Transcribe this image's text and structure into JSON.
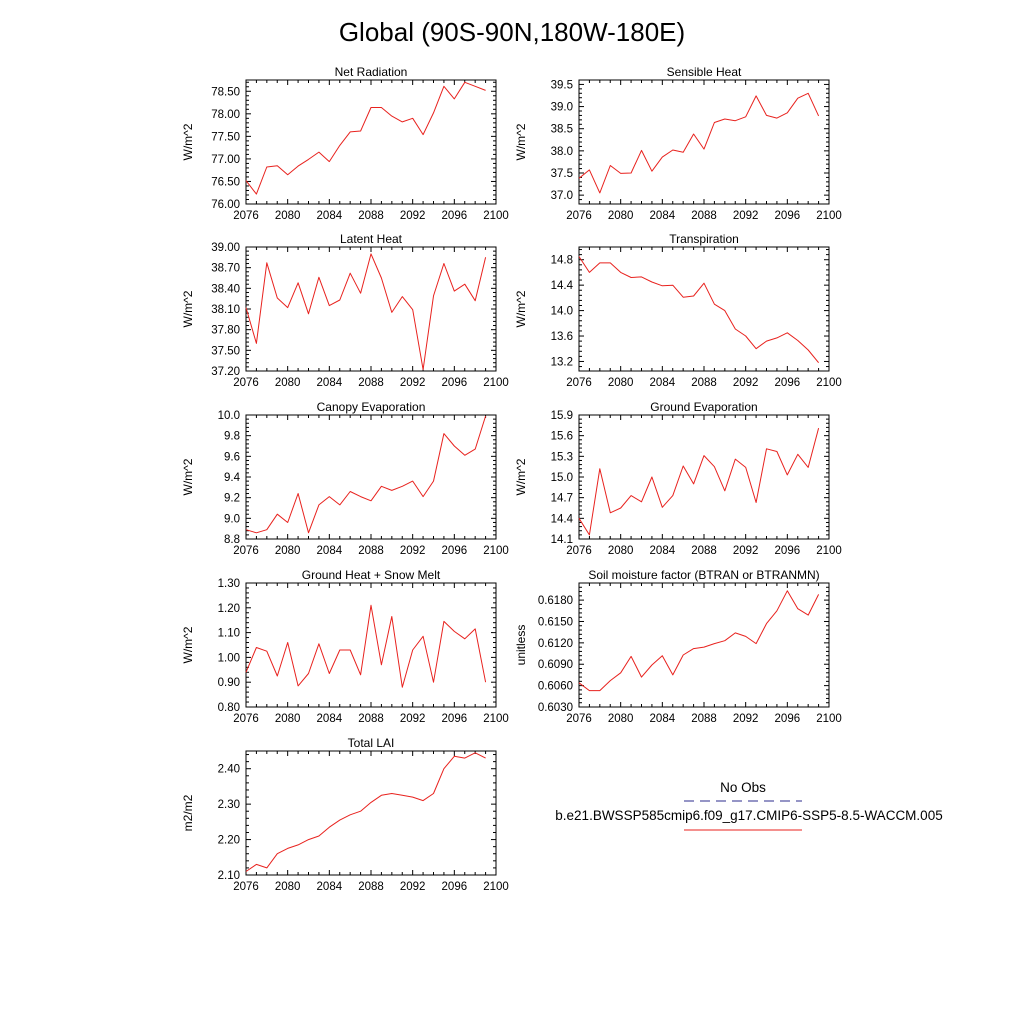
{
  "figure": {
    "title": "Global (90S-90N,180W-180E)"
  },
  "legend": {
    "items": [
      {
        "label": "No Obs",
        "color": "#2b2b8c",
        "style": "dashed"
      },
      {
        "label": "b.e21.BWSSP585cmip6.f09_g17.CMIP6-SSP5-8.5-WACCM.005",
        "color": "#e8221e",
        "style": "solid"
      }
    ]
  },
  "chart_data": [
    {
      "type": "line",
      "title": "Net Radiation",
      "ylabel": "W/m^2",
      "xlim": [
        2076,
        2100
      ],
      "ylim": [
        76.0,
        78.75
      ],
      "xticks": [
        "2076",
        "2080",
        "2084",
        "2088",
        "2092",
        "2096",
        "2100"
      ],
      "yticks": [
        "76.00",
        "76.50",
        "77.00",
        "77.50",
        "78.00",
        "78.50"
      ],
      "series": [
        {
          "color": "#e8221e",
          "x": [
            2076,
            2077,
            2078,
            2079,
            2080,
            2081,
            2082,
            2083,
            2084,
            2085,
            2086,
            2087,
            2088,
            2089,
            2090,
            2091,
            2092,
            2093,
            2094,
            2095,
            2096,
            2097,
            2098,
            2099
          ],
          "values": [
            76.52,
            76.22,
            76.82,
            76.85,
            76.65,
            76.84,
            76.99,
            77.15,
            76.94,
            77.3,
            77.6,
            77.62,
            78.14,
            78.14,
            77.95,
            77.82,
            77.9,
            77.54,
            78.02,
            78.61,
            78.33,
            78.7,
            78.61,
            78.52
          ]
        }
      ]
    },
    {
      "type": "line",
      "title": "Sensible Heat",
      "ylabel": "W/m^2",
      "xlim": [
        2076,
        2100
      ],
      "ylim": [
        36.8,
        39.6
      ],
      "xticks": [
        "2076",
        "2080",
        "2084",
        "2088",
        "2092",
        "2096",
        "2100"
      ],
      "yticks": [
        "37.0",
        "37.5",
        "38.0",
        "38.5",
        "39.0",
        "39.5"
      ],
      "series": [
        {
          "color": "#e8221e",
          "x": [
            2076,
            2077,
            2078,
            2079,
            2080,
            2081,
            2082,
            2083,
            2084,
            2085,
            2086,
            2087,
            2088,
            2089,
            2090,
            2091,
            2092,
            2093,
            2094,
            2095,
            2096,
            2097,
            2098,
            2099
          ],
          "values": [
            37.38,
            37.57,
            37.05,
            37.67,
            37.49,
            37.5,
            38.01,
            37.54,
            37.86,
            38.02,
            37.97,
            38.38,
            38.04,
            38.64,
            38.72,
            38.68,
            38.77,
            39.24,
            38.8,
            38.74,
            38.86,
            39.19,
            39.3,
            38.79
          ]
        }
      ]
    },
    {
      "type": "line",
      "title": "Latent Heat",
      "ylabel": "W/m^2",
      "xlim": [
        2076,
        2100
      ],
      "ylim": [
        37.2,
        39.0
      ],
      "xticks": [
        "2076",
        "2080",
        "2084",
        "2088",
        "2092",
        "2096",
        "2100"
      ],
      "yticks": [
        "37.20",
        "37.50",
        "37.80",
        "38.10",
        "38.40",
        "38.70",
        "39.00"
      ],
      "series": [
        {
          "color": "#e8221e",
          "x": [
            2076,
            2077,
            2078,
            2079,
            2080,
            2081,
            2082,
            2083,
            2084,
            2085,
            2086,
            2087,
            2088,
            2089,
            2090,
            2091,
            2092,
            2093,
            2094,
            2095,
            2096,
            2097,
            2098,
            2099
          ],
          "values": [
            38.12,
            37.6,
            38.77,
            38.26,
            38.12,
            38.48,
            38.03,
            38.56,
            38.15,
            38.23,
            38.62,
            38.33,
            38.9,
            38.55,
            38.05,
            38.28,
            38.09,
            37.22,
            38.29,
            38.76,
            38.36,
            38.46,
            38.22,
            38.85
          ]
        }
      ]
    },
    {
      "type": "line",
      "title": "Transpiration",
      "ylabel": "W/m^2",
      "xlim": [
        2076,
        2100
      ],
      "ylim": [
        13.05,
        15.0
      ],
      "xticks": [
        "2076",
        "2080",
        "2084",
        "2088",
        "2092",
        "2096",
        "2100"
      ],
      "yticks": [
        "13.2",
        "13.6",
        "14.0",
        "14.4",
        "14.8"
      ],
      "series": [
        {
          "color": "#e8221e",
          "x": [
            2076,
            2077,
            2078,
            2079,
            2080,
            2081,
            2082,
            2083,
            2084,
            2085,
            2086,
            2087,
            2088,
            2089,
            2090,
            2091,
            2092,
            2093,
            2094,
            2095,
            2096,
            2097,
            2098,
            2099
          ],
          "values": [
            14.85,
            14.6,
            14.75,
            14.75,
            14.6,
            14.52,
            14.53,
            14.45,
            14.39,
            14.4,
            14.21,
            14.23,
            14.43,
            14.1,
            14.0,
            13.71,
            13.6,
            13.4,
            13.52,
            13.57,
            13.65,
            13.53,
            13.38,
            13.18
          ]
        }
      ]
    },
    {
      "type": "line",
      "title": "Canopy Evaporation",
      "ylabel": "W/m^2",
      "xlim": [
        2076,
        2100
      ],
      "ylim": [
        8.8,
        10.0
      ],
      "xticks": [
        "2076",
        "2080",
        "2084",
        "2088",
        "2092",
        "2096",
        "2100"
      ],
      "yticks": [
        "8.8",
        "9.0",
        "9.2",
        "9.4",
        "9.6",
        "9.8",
        "10.0"
      ],
      "series": [
        {
          "color": "#e8221e",
          "x": [
            2076,
            2077,
            2078,
            2079,
            2080,
            2081,
            2082,
            2083,
            2084,
            2085,
            2086,
            2087,
            2088,
            2089,
            2090,
            2091,
            2092,
            2093,
            2094,
            2095,
            2096,
            2097,
            2098,
            2099
          ],
          "values": [
            8.89,
            8.86,
            8.89,
            9.04,
            8.96,
            9.24,
            8.86,
            9.13,
            9.21,
            9.13,
            9.26,
            9.21,
            9.17,
            9.31,
            9.27,
            9.31,
            9.36,
            9.21,
            9.36,
            9.82,
            9.7,
            9.61,
            9.67,
            9.99
          ]
        }
      ]
    },
    {
      "type": "line",
      "title": "Ground Evaporation",
      "ylabel": "W/m^2",
      "xlim": [
        2076,
        2100
      ],
      "ylim": [
        14.1,
        15.9
      ],
      "xticks": [
        "2076",
        "2080",
        "2084",
        "2088",
        "2092",
        "2096",
        "2100"
      ],
      "yticks": [
        "14.1",
        "14.4",
        "14.7",
        "15.0",
        "15.3",
        "15.6",
        "15.9"
      ],
      "series": [
        {
          "color": "#e8221e",
          "x": [
            2076,
            2077,
            2078,
            2079,
            2080,
            2081,
            2082,
            2083,
            2084,
            2085,
            2086,
            2087,
            2088,
            2089,
            2090,
            2091,
            2092,
            2093,
            2094,
            2095,
            2096,
            2097,
            2098,
            2099
          ],
          "values": [
            14.4,
            14.16,
            15.12,
            14.48,
            14.55,
            14.73,
            14.64,
            15.0,
            14.56,
            14.73,
            15.16,
            14.9,
            15.31,
            15.15,
            14.8,
            15.26,
            15.14,
            14.63,
            15.41,
            15.37,
            15.03,
            15.33,
            15.14,
            15.71
          ]
        }
      ]
    },
    {
      "type": "line",
      "title": "Ground Heat + Snow Melt",
      "ylabel": "W/m^2",
      "xlim": [
        2076,
        2100
      ],
      "ylim": [
        0.8,
        1.3
      ],
      "xticks": [
        "2076",
        "2080",
        "2084",
        "2088",
        "2092",
        "2096",
        "2100"
      ],
      "yticks": [
        "0.80",
        "0.90",
        "1.00",
        "1.10",
        "1.20",
        "1.30"
      ],
      "series": [
        {
          "color": "#e8221e",
          "x": [
            2076,
            2077,
            2078,
            2079,
            2080,
            2081,
            2082,
            2083,
            2084,
            2085,
            2086,
            2087,
            2088,
            2089,
            2090,
            2091,
            2092,
            2093,
            2094,
            2095,
            2096,
            2097,
            2098,
            2099
          ],
          "values": [
            0.94,
            1.04,
            1.025,
            0.925,
            1.06,
            0.885,
            0.935,
            1.055,
            0.935,
            1.03,
            1.03,
            0.93,
            1.21,
            0.97,
            1.165,
            0.88,
            1.03,
            1.085,
            0.9,
            1.145,
            1.105,
            1.075,
            1.115,
            0.9
          ]
        }
      ]
    },
    {
      "type": "line",
      "title": "Soil moisture factor (BTRAN or BTRANMN)",
      "ylabel": "unitless",
      "xlim": [
        2076,
        2100
      ],
      "ylim": [
        0.603,
        0.6204
      ],
      "xticks": [
        "2076",
        "2080",
        "2084",
        "2088",
        "2092",
        "2096",
        "2100"
      ],
      "yticks": [
        "0.6030",
        "0.6060",
        "0.6090",
        "0.6120",
        "0.6150",
        "0.6180"
      ],
      "series": [
        {
          "color": "#e8221e",
          "x": [
            2076,
            2077,
            2078,
            2079,
            2080,
            2081,
            2082,
            2083,
            2084,
            2085,
            2086,
            2087,
            2088,
            2089,
            2090,
            2091,
            2092,
            2093,
            2094,
            2095,
            2096,
            2097,
            2098,
            2099
          ],
          "values": [
            0.6064,
            0.6053,
            0.6053,
            0.6067,
            0.6078,
            0.6101,
            0.6072,
            0.6089,
            0.6102,
            0.6075,
            0.6103,
            0.6112,
            0.6114,
            0.6119,
            0.6123,
            0.6134,
            0.6129,
            0.6119,
            0.6147,
            0.6165,
            0.6193,
            0.6168,
            0.6159,
            0.6188
          ]
        }
      ]
    },
    {
      "type": "line",
      "title": "Total LAI",
      "ylabel": "m2/m2",
      "xlim": [
        2076,
        2100
      ],
      "ylim": [
        2.1,
        2.45
      ],
      "xticks": [
        "2076",
        "2080",
        "2084",
        "2088",
        "2092",
        "2096",
        "2100"
      ],
      "yticks": [
        "2.10",
        "2.20",
        "2.30",
        "2.40"
      ],
      "series": [
        {
          "color": "#e8221e",
          "x": [
            2076,
            2077,
            2078,
            2079,
            2080,
            2081,
            2082,
            2083,
            2084,
            2085,
            2086,
            2087,
            2088,
            2089,
            2090,
            2091,
            2092,
            2093,
            2094,
            2095,
            2096,
            2097,
            2098,
            2099
          ],
          "values": [
            2.11,
            2.13,
            2.12,
            2.16,
            2.175,
            2.185,
            2.2,
            2.21,
            2.235,
            2.255,
            2.27,
            2.28,
            2.305,
            2.325,
            2.33,
            2.325,
            2.32,
            2.31,
            2.33,
            2.4,
            2.435,
            2.43,
            2.445,
            2.43
          ]
        }
      ]
    }
  ]
}
